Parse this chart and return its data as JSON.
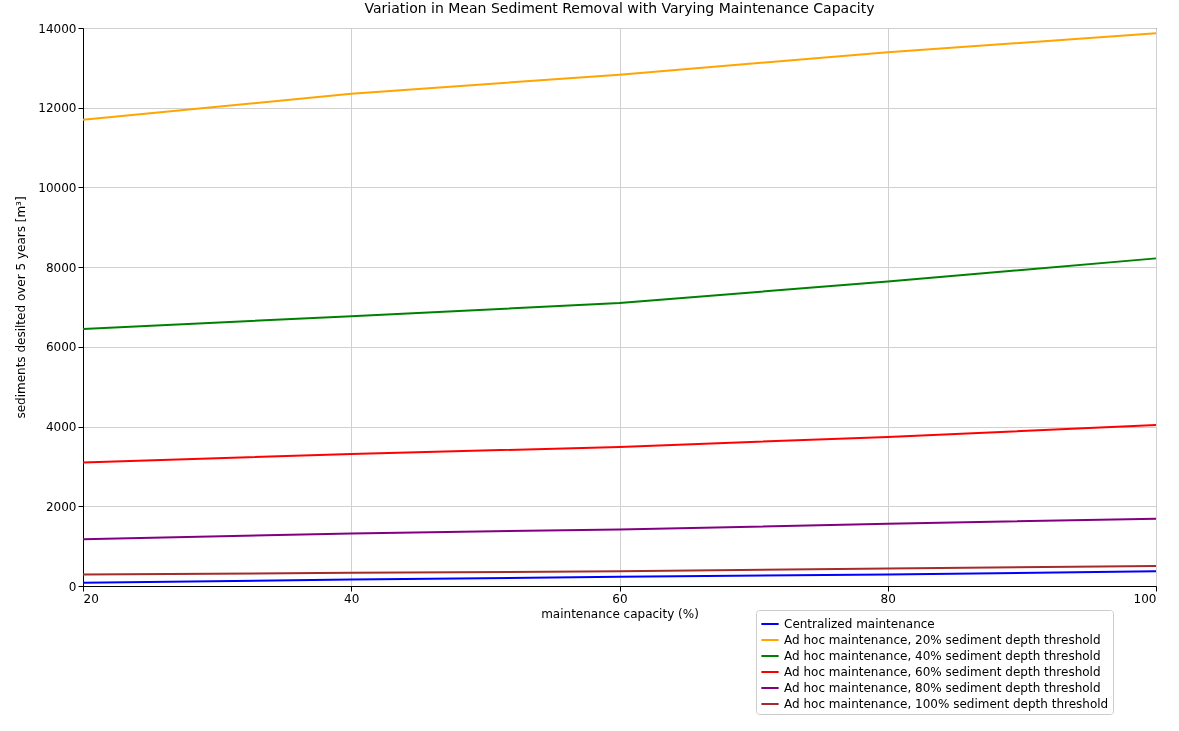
{
  "chart_data": {
    "type": "line",
    "title": "Variation in Mean Sediment Removal with Varying Maintenance Capacity",
    "xlabel": "maintenance capacity (%)",
    "ylabel": "sediments desilted over 5 years [m³]",
    "x": [
      20,
      40,
      60,
      80,
      100
    ],
    "xlim": [
      20,
      100
    ],
    "xticks": [
      20,
      40,
      60,
      80,
      100
    ],
    "ylim": [
      0,
      14000
    ],
    "yticks": [
      0,
      2000,
      4000,
      6000,
      8000,
      10000,
      12000,
      14000
    ],
    "grid": true,
    "legend": "bottom right",
    "marker": "none",
    "line_style": "solid",
    "series": [
      {
        "name": "Centralized maintenance",
        "color": "#0000ff",
        "values": [
          80,
          160,
          230,
          290,
          370
        ]
      },
      {
        "name": "Ad hoc maintenance, 20% sediment depth threshold",
        "color": "#ffa500",
        "values": [
          11700,
          12350,
          12830,
          13390,
          13870
        ]
      },
      {
        "name": "Ad hoc maintenance, 40% sediment depth threshold",
        "color": "#008000",
        "values": [
          6450,
          6770,
          7100,
          7640,
          8220
        ]
      },
      {
        "name": "Ad hoc maintenance, 60% sediment depth threshold",
        "color": "#ff0000",
        "values": [
          3100,
          3310,
          3490,
          3740,
          4040
        ]
      },
      {
        "name": "Ad hoc maintenance, 80% sediment depth threshold",
        "color": "#800080",
        "values": [
          1170,
          1320,
          1420,
          1560,
          1690
        ]
      },
      {
        "name": "Ad hoc maintenance, 100% sediment depth threshold",
        "color": "#a52a2a",
        "values": [
          290,
          330,
          370,
          440,
          500
        ]
      }
    ]
  }
}
